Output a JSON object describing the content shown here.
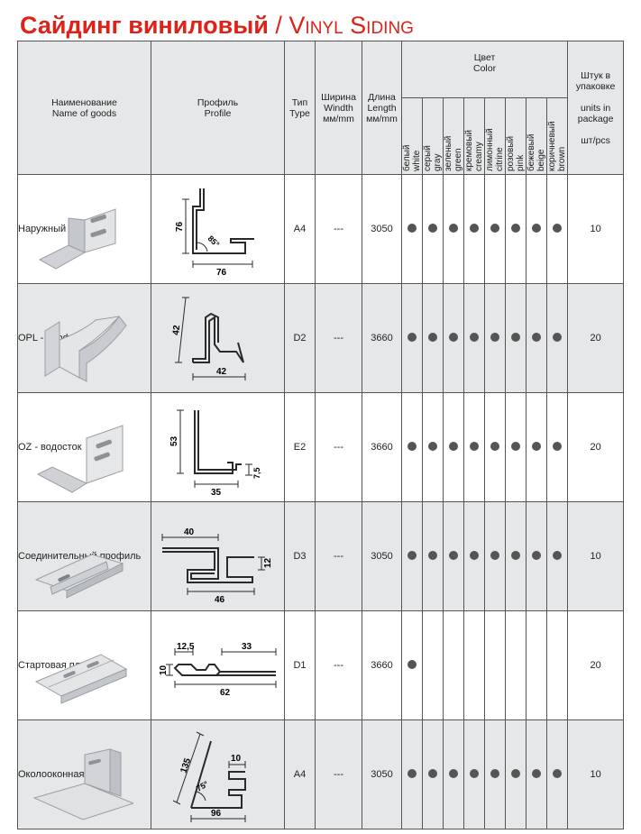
{
  "title": {
    "ru": "Сайдинг виниловый",
    "sep": " / ",
    "en": "Vinyl Siding"
  },
  "header": {
    "name_ru": "Наименование",
    "name_en": "Name of goods",
    "profile_ru": "Профиль",
    "profile_en": "Profile",
    "type_ru": "Тип",
    "type_en": "Type",
    "width_ru": "Ширина",
    "width_en": "Windth",
    "width_unit": "мм/mm",
    "length_ru": "Длина",
    "length_en": "Length",
    "length_unit": "мм/mm",
    "color_ru": "Цвет",
    "color_en": "Color",
    "qty_ru": "Штук в упаковке",
    "qty_en": "units in package",
    "qty_unit": "шт/pcs",
    "colors": [
      {
        "ru": "белый",
        "en": "white"
      },
      {
        "ru": "серый",
        "en": "gray"
      },
      {
        "ru": "зеленый",
        "en": "green"
      },
      {
        "ru": "кремовый",
        "en": "creamy"
      },
      {
        "ru": "лимонный",
        "en": "citrine"
      },
      {
        "ru": "розовый",
        "en": "pink"
      },
      {
        "ru": "бежевый",
        "en": "beige"
      },
      {
        "ru": "коричневый",
        "en": "brown"
      }
    ]
  },
  "rows": [
    {
      "name": "Наружный угол",
      "type": "A4",
      "width": "---",
      "length": "3050",
      "colors": [
        1,
        1,
        1,
        1,
        1,
        1,
        1,
        1
      ],
      "qty": "10",
      "dims": {
        "h": "76",
        "w": "76",
        "angle": "85°"
      }
    },
    {
      "name": "OPL - профиль",
      "type": "D2",
      "width": "---",
      "length": "3660",
      "colors": [
        1,
        1,
        1,
        1,
        1,
        1,
        1,
        1
      ],
      "qty": "20",
      "dims": {
        "h": "42",
        "w": "42"
      }
    },
    {
      "name": "OZ - водосток",
      "type": "E2",
      "width": "---",
      "length": "3660",
      "colors": [
        1,
        1,
        1,
        1,
        1,
        1,
        1,
        1
      ],
      "qty": "20",
      "dims": {
        "h": "53",
        "w": "35",
        "s": "7,5"
      }
    },
    {
      "name": "Соединительный профиль",
      "type": "D3",
      "width": "---",
      "length": "3050",
      "colors": [
        1,
        1,
        1,
        1,
        1,
        1,
        1,
        1
      ],
      "qty": "10",
      "dims": {
        "top": "40",
        "h": "12",
        "w": "46"
      }
    },
    {
      "name": "Стартовая планка",
      "type": "D1",
      "width": "---",
      "length": "3660",
      "colors": [
        1,
        0,
        0,
        0,
        0,
        0,
        0,
        0
      ],
      "qty": "20",
      "dims": {
        "a": "12,5",
        "b": "33",
        "h": "10",
        "w": "62"
      }
    },
    {
      "name": "Околооконная планка",
      "type": "A4",
      "width": "---",
      "length": "3050",
      "colors": [
        1,
        1,
        1,
        1,
        1,
        1,
        1,
        1
      ],
      "qty": "10",
      "dims": {
        "d": "135",
        "t": "10",
        "angle": "75°",
        "w": "96"
      }
    }
  ]
}
